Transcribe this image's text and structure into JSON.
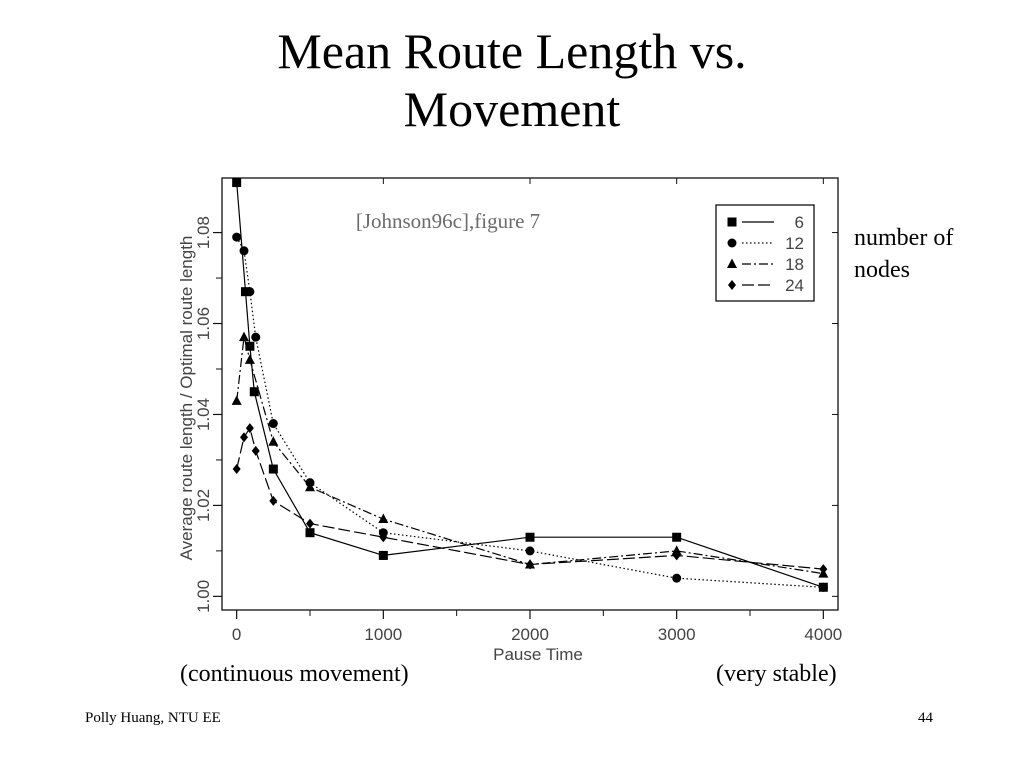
{
  "slide": {
    "title_line1": "Mean Route Length vs.",
    "title_line2": "Movement",
    "citation": "[Johnson96c],figure 7",
    "legend_caption_line1": "number of",
    "legend_caption_line2": "nodes",
    "left_note": "(continuous movement)",
    "right_note": "(very stable)",
    "footer_left": "Polly Huang, NTU EE",
    "page_number": "44"
  },
  "chart_data": {
    "type": "line",
    "xlabel": "Pause Time",
    "ylabel": "Average route length / Optimal route length",
    "xlim": [
      -100,
      4100
    ],
    "ylim": [
      0.997,
      1.092
    ],
    "xticks": [
      0,
      1000,
      2000,
      3000,
      4000
    ],
    "yticks": [
      1.0,
      1.02,
      1.04,
      1.06,
      1.08
    ],
    "ytick_labels": [
      "1.00",
      "1.02",
      "1.04",
      "1.06",
      "1.08"
    ],
    "legend_position": "top-right",
    "series": [
      {
        "name": "6",
        "marker": "square",
        "dash": "solid",
        "x": [
          0,
          60,
          90,
          120,
          250,
          500,
          1000,
          2000,
          3000,
          4000
        ],
        "y": [
          1.091,
          1.067,
          1.055,
          1.045,
          1.028,
          1.014,
          1.009,
          1.013,
          1.013,
          1.002
        ]
      },
      {
        "name": "12",
        "marker": "circle",
        "dash": "dotted",
        "x": [
          0,
          50,
          90,
          130,
          250,
          500,
          1000,
          2000,
          3000,
          4000
        ],
        "y": [
          1.079,
          1.076,
          1.067,
          1.057,
          1.038,
          1.025,
          1.014,
          1.01,
          1.004,
          1.002
        ]
      },
      {
        "name": "18",
        "marker": "triangle",
        "dash": "dashdot",
        "x": [
          0,
          50,
          90,
          250,
          500,
          1000,
          2000,
          3000,
          4000
        ],
        "y": [
          1.043,
          1.057,
          1.052,
          1.034,
          1.024,
          1.017,
          1.007,
          1.01,
          1.005
        ]
      },
      {
        "name": "24",
        "marker": "diamond",
        "dash": "longdash",
        "x": [
          0,
          50,
          90,
          130,
          250,
          500,
          1000,
          2000,
          3000,
          4000
        ],
        "y": [
          1.028,
          1.035,
          1.037,
          1.032,
          1.021,
          1.016,
          1.013,
          1.007,
          1.009,
          1.006
        ]
      }
    ]
  }
}
